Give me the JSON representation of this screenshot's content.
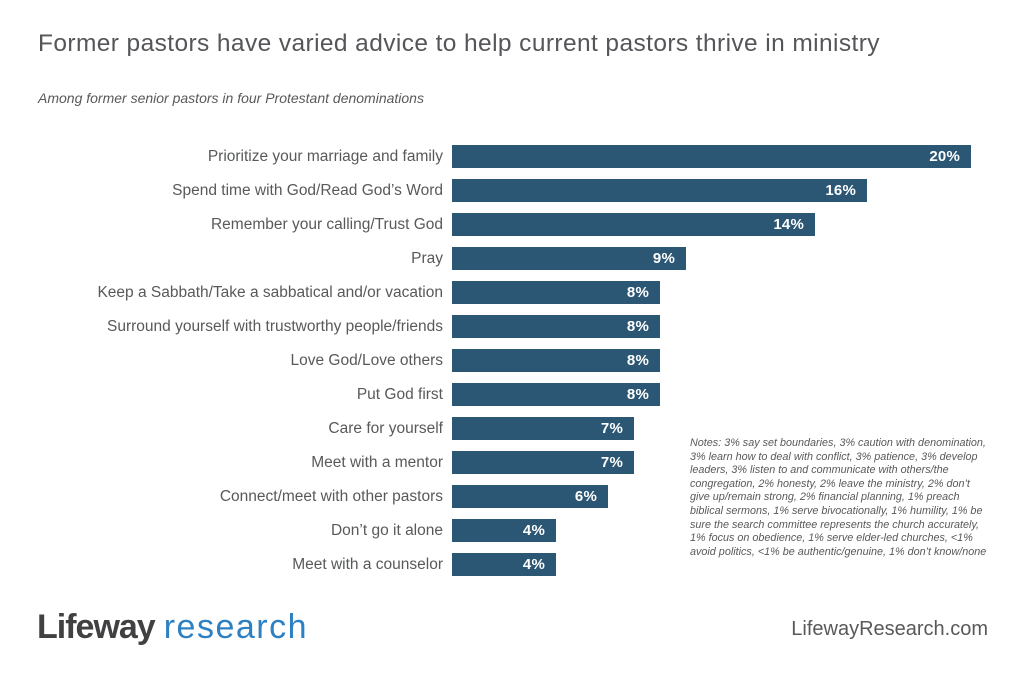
{
  "header": {
    "title": "Former pastors have varied advice to help current pastors thrive in ministry",
    "subtitle": "Among former senior pastors in four Protestant denominations"
  },
  "chart_data": {
    "type": "bar",
    "orientation": "horizontal",
    "title": "Former pastors have varied advice to help current pastors thrive in ministry",
    "subtitle": "Among former senior pastors in four Protestant denominations",
    "categories": [
      "Prioritize your marriage and family",
      "Spend time with God/Read God’s Word",
      "Remember your calling/Trust God",
      "Pray",
      "Keep a Sabbath/Take a sabbatical and/or vacation",
      "Surround yourself with trustworthy people/friends",
      "Love God/Love others",
      "Put God first",
      "Care for yourself",
      "Meet with a mentor",
      "Connect/meet with other pastors",
      "Don’t go it alone",
      "Meet with a counselor"
    ],
    "values": [
      20,
      16,
      14,
      9,
      8,
      8,
      8,
      8,
      7,
      7,
      6,
      4,
      4
    ],
    "value_labels": [
      "20%",
      "16%",
      "14%",
      "9%",
      "8%",
      "8%",
      "8%",
      "8%",
      "7%",
      "7%",
      "6%",
      "4%",
      "4%"
    ],
    "xlim": [
      0,
      20
    ],
    "grid": false,
    "value_labels_position": "inside-end",
    "bar_color": "#2b5674"
  },
  "notes": {
    "text": "Notes: 3% say set boundaries, 3% caution with denomination, 3% learn how to deal with conflict, 3% patience, 3% develop leaders, 3% listen to and communicate with others/the congregation, 2% honesty, 2% leave the ministry, 2% don’t give up/remain strong, 2% financial planning, 1% preach biblical sermons, 1% serve bivocationally, 1% humility, 1% be sure the search committee represents the church accurately, 1% focus on obedience, 1% serve elder-led churches, <1% avoid politics, <1% be authentic/genuine, 1% don’t know/none"
  },
  "footer": {
    "logo_primary": "Lifeway",
    "logo_secondary": "research",
    "website": "LifewayResearch.com"
  },
  "colors": {
    "bar": "#2b5674",
    "valueText": "#ffffff",
    "titleGray": "#54565a",
    "textGray": "#58595b",
    "logoBlue": "#2d80c2",
    "logoDark": "#414042",
    "background": "#ffffff"
  }
}
